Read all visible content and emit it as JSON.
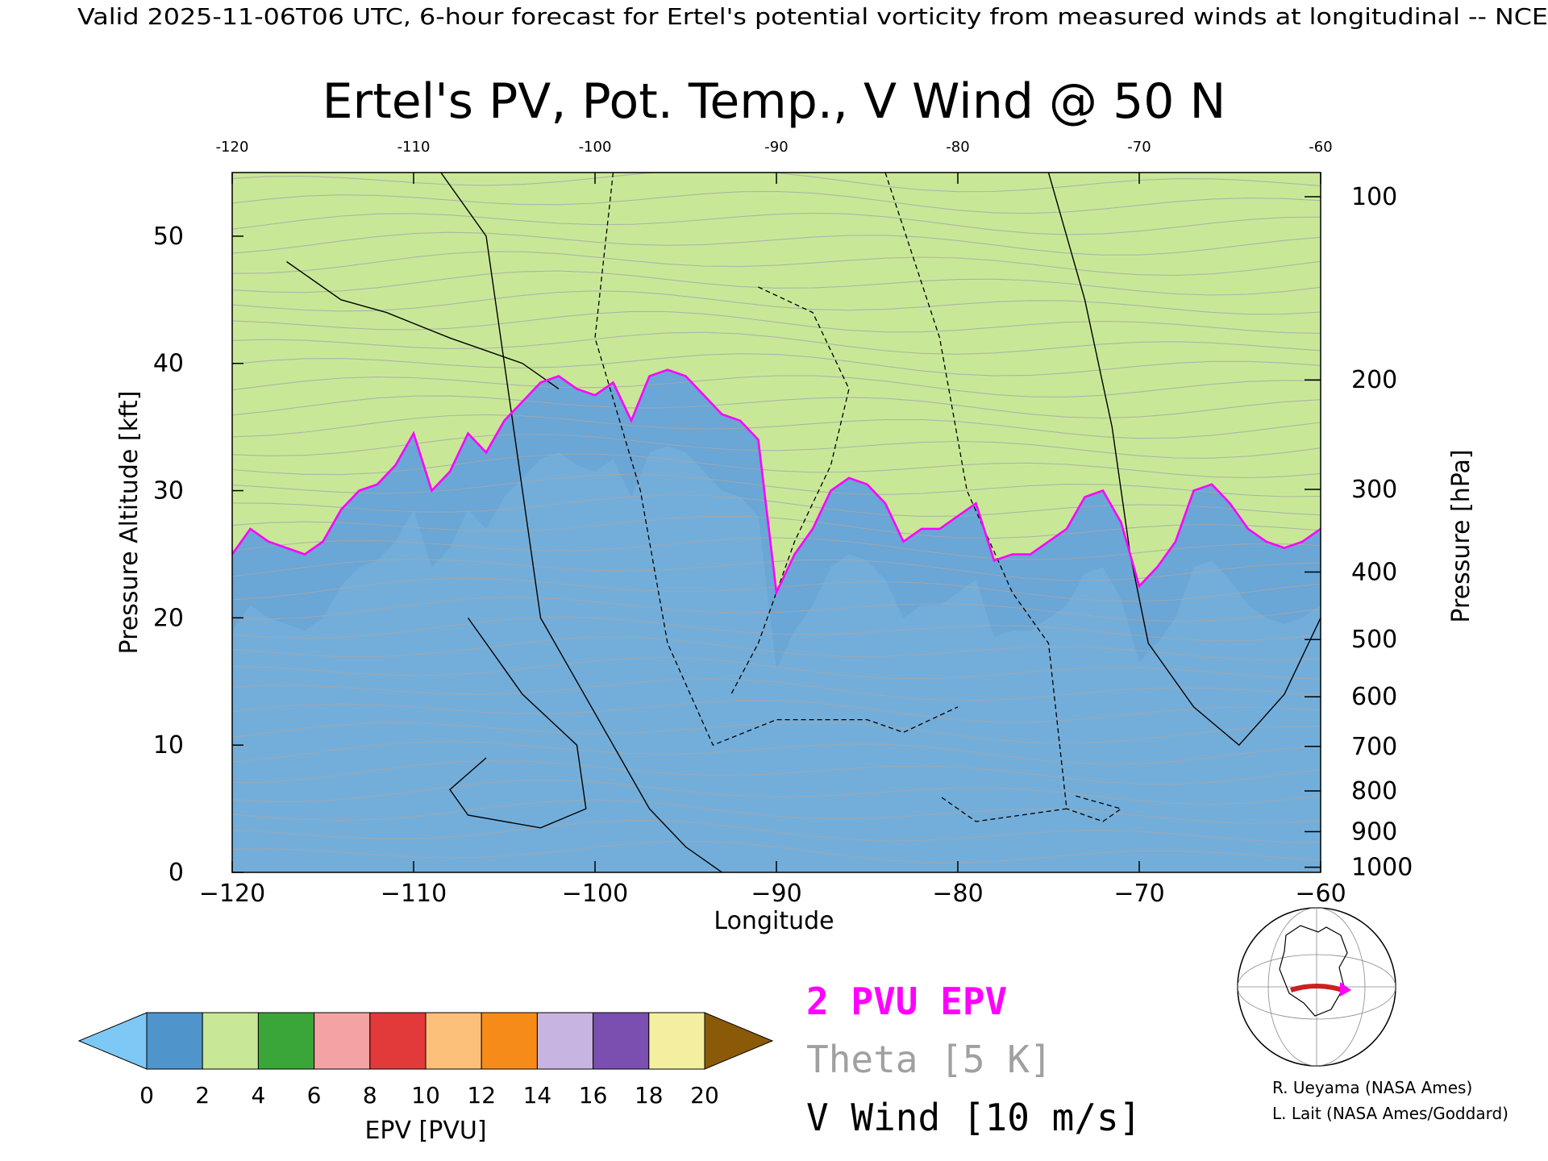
{
  "header": "Valid 2025-11-06T06 UTC, 6-hour forecast for Ertel's potential vorticity from measured winds at longitudinal -- NCE",
  "chart_data": {
    "type": "heatmap",
    "title": "Ertel's PV, Pot. Temp., V Wind @ 50 N",
    "xlabel": "Longitude",
    "ylabel": "Pressure Altitude [kft]",
    "y2label": "Pressure [hPa]",
    "xlim": [
      -120,
      -60
    ],
    "ylim": [
      0,
      55
    ],
    "x_ticks": [
      -120,
      -110,
      -100,
      -90,
      -80,
      -70,
      -60
    ],
    "x_tick_labels": [
      "−120",
      "−110",
      "−100",
      "−90",
      "−80",
      "−70",
      "−60"
    ],
    "top_tick_labels": [
      "-120",
      "-110",
      "-100",
      "-90",
      "-80",
      "-70",
      "-60"
    ],
    "y_ticks": [
      0,
      10,
      20,
      30,
      40,
      50
    ],
    "y_tick_labels": [
      "0",
      "10",
      "20",
      "30",
      "40",
      "50"
    ],
    "pressure_ticks": [
      {
        "hpa": 100,
        "kft": 53.1,
        "label": "100"
      },
      {
        "hpa": 200,
        "kft": 38.7,
        "label": "200"
      },
      {
        "hpa": 300,
        "kft": 30.1,
        "label": "300"
      },
      {
        "hpa": 400,
        "kft": 23.6,
        "label": "400"
      },
      {
        "hpa": 500,
        "kft": 18.3,
        "label": "500"
      },
      {
        "hpa": 600,
        "kft": 13.8,
        "label": "600"
      },
      {
        "hpa": 700,
        "kft": 9.9,
        "label": "700"
      },
      {
        "hpa": 800,
        "kft": 6.4,
        "label": "800"
      },
      {
        "hpa": 900,
        "kft": 3.2,
        "label": "900"
      },
      {
        "hpa": 1000,
        "kft": 0.4,
        "label": "1000"
      }
    ],
    "pv_2pvu_profile": {
      "lon": [
        -120,
        -119,
        -118,
        -117,
        -116,
        -115,
        -114,
        -113,
        -112,
        -111,
        -110,
        -109,
        -108,
        -107,
        -106,
        -105,
        -104,
        -103,
        -102,
        -101,
        -100,
        -99,
        -98,
        -97,
        -96,
        -95,
        -94,
        -93,
        -92,
        -91,
        -90,
        -89,
        -88,
        -87,
        -86,
        -85,
        -84,
        -83,
        -82,
        -81,
        -80,
        -79,
        -78,
        -77,
        -76,
        -75,
        -74,
        -73,
        -72,
        -71,
        -70,
        -69,
        -68,
        -67,
        -66,
        -65,
        -64,
        -63,
        -62,
        -61,
        -60
      ],
      "kft": [
        25,
        27,
        26,
        25.5,
        25,
        26,
        28.5,
        30,
        30.5,
        32,
        34.5,
        30,
        31.5,
        34.5,
        33,
        35.5,
        37,
        38.5,
        39,
        38,
        37.5,
        38.5,
        35.5,
        39,
        39.5,
        39,
        37.5,
        36,
        35.5,
        34,
        22,
        25,
        27,
        30,
        31,
        30.5,
        29,
        26,
        27,
        27,
        28,
        29,
        24.5,
        25,
        25,
        26,
        27,
        29.5,
        30,
        27.5,
        22.5,
        24,
        26,
        30,
        30.5,
        29,
        27,
        26,
        25.5,
        26,
        27
      ]
    },
    "pv_colorbar": {
      "label": "EPV [PVU]",
      "ticks": [
        0,
        2,
        4,
        6,
        8,
        10,
        12,
        14,
        16,
        18,
        20
      ],
      "tick_labels": [
        "0",
        "2",
        "4",
        "6",
        "8",
        "10",
        "12",
        "14",
        "16",
        "18",
        "20"
      ],
      "under_color": "#7ec8f5",
      "over_color": "#8b5a08",
      "colors": [
        "#8ec8e8",
        "#4f95cc",
        "#c8e898",
        "#3aa63a",
        "#f3a3a3",
        "#e23a3a",
        "#fcc07a",
        "#f78b1a",
        "#c8b4e0",
        "#7b4fb0",
        "#f4efa0"
      ]
    },
    "legend": {
      "pv": "2 PVU EPV",
      "theta": "Theta [5 K]",
      "vwind": "V Wind [10 m/s]",
      "pv_color": "#ff00ff",
      "theta_color": "#a0a0a0",
      "vwind_color": "#000000"
    },
    "grid": false
  },
  "credits": {
    "line1": "R. Ueyama (NASA Ames)",
    "line2": "L. Lait (NASA Ames/Goddard)"
  },
  "inset_map": {
    "track_color": "#cc2020",
    "arrow_color": "#ff00ff"
  }
}
